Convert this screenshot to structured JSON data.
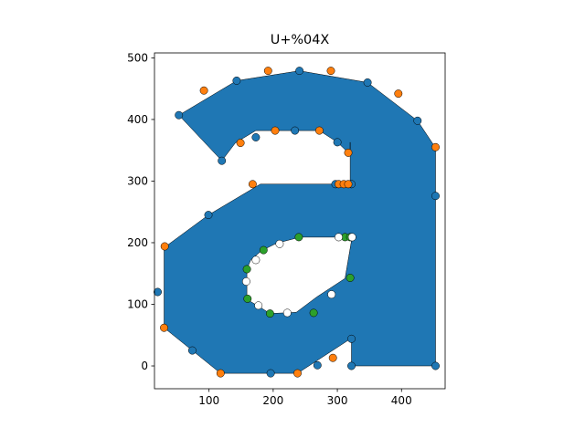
{
  "chart_data": {
    "type": "scatter",
    "title": "U+%04X",
    "xlim": [
      15,
      468
    ],
    "ylim": [
      -37,
      508
    ],
    "xticks": [
      100,
      200,
      300,
      400
    ],
    "yticks": [
      0,
      100,
      200,
      300,
      400,
      500
    ],
    "grid": false,
    "glyph_fill_color": "#1f77b4",
    "glyph_contours": [
      [
        [
          53,
          407
        ],
        [
          143,
          463
        ],
        [
          241,
          479
        ],
        [
          347,
          460
        ],
        [
          425,
          398
        ],
        [
          453,
          354
        ],
        [
          453,
          0
        ],
        [
          322,
          0
        ],
        [
          322,
          45
        ],
        [
          238,
          -12
        ],
        [
          196,
          -12
        ],
        [
          118,
          -12
        ],
        [
          74,
          25
        ],
        [
          30,
          62
        ],
        [
          30,
          120
        ],
        [
          30,
          192
        ],
        [
          99,
          245
        ],
        [
          180,
          295
        ],
        [
          297,
          295
        ],
        [
          320,
          295
        ],
        [
          320,
          363
        ],
        [
          320,
          343
        ],
        [
          300,
          363
        ],
        [
          272,
          382
        ],
        [
          234,
          382
        ],
        [
          173,
          382
        ],
        [
          141,
          362
        ],
        [
          120,
          333
        ]
      ],
      [
        [
          323,
          209
        ],
        [
          312,
          142
        ],
        [
          268,
          112
        ],
        [
          236,
          87
        ],
        [
          195,
          85
        ],
        [
          177,
          97
        ],
        [
          159,
          108
        ],
        [
          159,
          138
        ],
        [
          159,
          157
        ],
        [
          165,
          172
        ],
        [
          182,
          187
        ],
        [
          205,
          199
        ],
        [
          242,
          209
        ],
        [
          302,
          209
        ]
      ]
    ],
    "series": [
      {
        "color": "#1f77b4",
        "points": [
          [
            53,
            407
          ],
          [
            143,
            463
          ],
          [
            241,
            479
          ],
          [
            347,
            460
          ],
          [
            425,
            398
          ],
          [
            453,
            276
          ],
          [
            453,
            0
          ],
          [
            322,
            0
          ],
          [
            322,
            44
          ],
          [
            269,
            1
          ],
          [
            196,
            -12
          ],
          [
            74,
            25
          ],
          [
            20,
            120
          ],
          [
            99,
            245
          ],
          [
            297,
            295
          ],
          [
            322,
            295
          ],
          [
            300,
            363
          ],
          [
            234,
            382
          ],
          [
            173,
            371
          ],
          [
            120,
            333
          ]
        ]
      },
      {
        "color": "#ff7f0e",
        "points": [
          [
            92,
            447
          ],
          [
            192,
            479
          ],
          [
            290,
            479
          ],
          [
            395,
            442
          ],
          [
            453,
            355
          ],
          [
            317,
            346
          ],
          [
            272,
            382
          ],
          [
            203,
            382
          ],
          [
            149,
            362
          ],
          [
            168,
            295
          ],
          [
            302,
            295
          ],
          [
            310,
            295
          ],
          [
            317,
            295
          ],
          [
            31,
            194
          ],
          [
            30,
            62
          ],
          [
            118,
            -12
          ],
          [
            238,
            -12
          ],
          [
            293,
            13
          ]
        ]
      },
      {
        "color": "#2ca02c",
        "points": [
          [
            185,
            188
          ],
          [
            240,
            209
          ],
          [
            312,
            209
          ],
          [
            320,
            209
          ],
          [
            320,
            143
          ],
          [
            263,
            86
          ],
          [
            195,
            85
          ],
          [
            160,
            109
          ],
          [
            159,
            157
          ]
        ]
      },
      {
        "color": "#ffffff",
        "points": [
          [
            210,
            198
          ],
          [
            173,
            172
          ],
          [
            158,
            137
          ],
          [
            177,
            98
          ],
          [
            222,
            86
          ],
          [
            291,
            116
          ],
          [
            302,
            209
          ],
          [
            323,
            209
          ]
        ]
      }
    ]
  }
}
